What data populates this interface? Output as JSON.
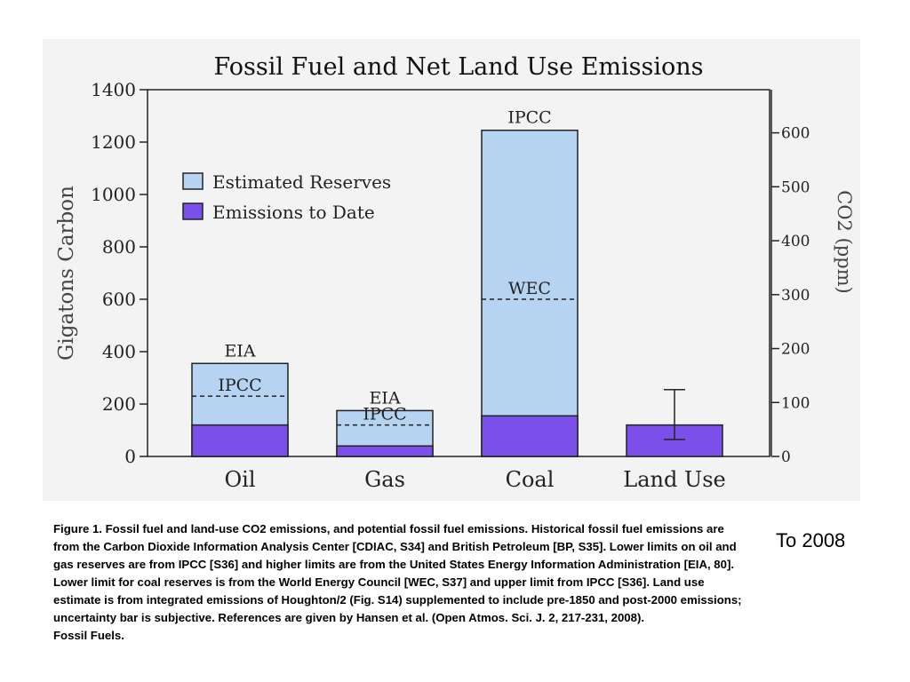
{
  "chart_data": {
    "type": "bar",
    "title": "Fossil Fuel and Net Land Use Emissions",
    "ylabel": "Gigatons Carbon",
    "y2label": "CO2 (ppm)",
    "categories": [
      "Oil",
      "Gas",
      "Coal",
      "Land Use"
    ],
    "ylim": [
      0,
      1400
    ],
    "y_ticks": [
      0,
      200,
      400,
      600,
      800,
      1000,
      1200,
      1400
    ],
    "y2lim": [
      0,
      680
    ],
    "y2_ticks": [
      0,
      100,
      200,
      300,
      400,
      500,
      600
    ],
    "grid": false,
    "legend_position": "top-left",
    "series": [
      {
        "name": "Estimated Reserves",
        "color": "#b7d3f2",
        "values": [
          355,
          175,
          1245,
          null
        ]
      },
      {
        "name": "Emissions to Date",
        "color": "#7b50ea",
        "values": [
          120,
          40,
          155,
          120
        ]
      }
    ],
    "limit_lines": [
      {
        "category": "Oil",
        "value": 230,
        "label": "IPCC"
      },
      {
        "category": "Gas",
        "value": 120,
        "label": "IPCC"
      },
      {
        "category": "Coal",
        "value": 600,
        "label": "WEC"
      }
    ],
    "top_labels": [
      {
        "category": "Oil",
        "label": "EIA"
      },
      {
        "category": "Gas",
        "label": "EIA"
      },
      {
        "category": "Coal",
        "label": "IPCC"
      }
    ],
    "error_bar": {
      "category": "Land Use",
      "low": 65,
      "high": 255
    }
  },
  "caption": {
    "text": "Figure 1. Fossil fuel and land-use CO2 emissions, and potential fossil fuel emissions. Historical fossil fuel emissions are from the Carbon Dioxide Information Analysis Center [CDIAC, S34] and British Petroleum [BP, S35]. Lower limits on oil and gas reserves are from IPCC [S36] and higher limits are from the United States Energy Information Administration [EIA, 80]. Lower limit for coal reserves is from the World Energy Council [WEC, S37] and upper limit from IPCC [S36]. Land use estimate is from integrated emissions of Houghton/2 (Fig. S14) supplemented to include pre-1850 and post-2000 emissions; uncertainty bar is subjective. References are given by Hansen et al. (Open Atmos. Sci. J. 2, 217-231, 2008).",
    "footer": "Fossil Fuels."
  },
  "side_note": "To 2008"
}
